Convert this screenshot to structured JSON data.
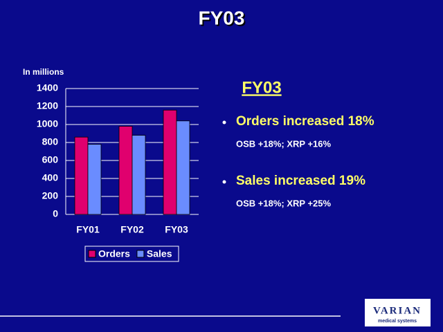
{
  "title": "FY03",
  "chart_data": {
    "type": "bar",
    "y_label": "In millions",
    "categories": [
      "FY01",
      "FY02",
      "FY03"
    ],
    "series": [
      {
        "name": "Orders",
        "color": "#e0006e",
        "values": [
          860,
          980,
          1160
        ]
      },
      {
        "name": "Sales",
        "color": "#6a8cff",
        "values": [
          780,
          880,
          1040
        ]
      }
    ],
    "ylim": [
      0,
      1400
    ],
    "yticks": [
      0,
      200,
      400,
      600,
      800,
      1000,
      1200,
      1400
    ],
    "grid": true,
    "legend": "bottom"
  },
  "panel": {
    "heading": "FY03",
    "bullets": [
      {
        "text": "Orders increased 18%",
        "sub": "OSB +18%; XRP +16%"
      },
      {
        "text": "Sales increased 19%",
        "sub": "OSB +18%; XRP +25%"
      }
    ]
  },
  "logo": {
    "name": "VARIAN",
    "tagline": "medical systems"
  }
}
